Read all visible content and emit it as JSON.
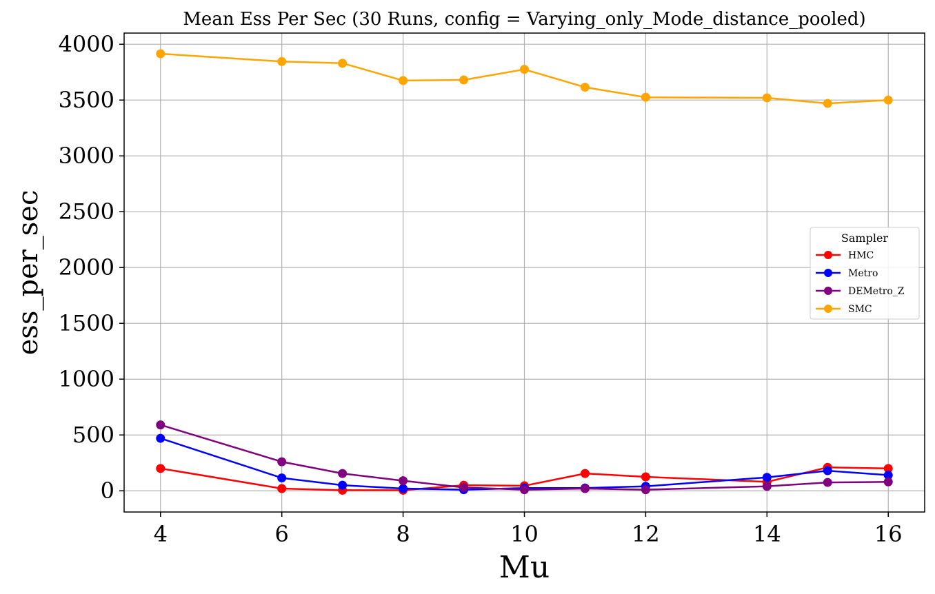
{
  "chart_data": {
    "type": "line",
    "title": "Mean Ess Per Sec (30 Runs, config = Varying_only_Mode_distance_pooled)",
    "xlabel": "Mu",
    "ylabel": "ess_per_sec",
    "xlim": [
      3.4,
      16.6
    ],
    "ylim": [
      -190,
      4100
    ],
    "x_ticks": [
      4,
      6,
      8,
      10,
      12,
      14,
      16
    ],
    "y_ticks": [
      0,
      500,
      1000,
      1500,
      2000,
      2500,
      3000,
      3500,
      4000
    ],
    "grid": true,
    "legend": {
      "title": "Sampler",
      "placement": "center-right"
    },
    "x": [
      4,
      6,
      7,
      8,
      9,
      10,
      11,
      12,
      14,
      15,
      16
    ],
    "series": [
      {
        "name": "HMC",
        "color": "#ff0000",
        "values": [
          200,
          20,
          5,
          5,
          50,
          45,
          155,
          125,
          80,
          210,
          200
        ]
      },
      {
        "name": "Metro",
        "color": "#0000ff",
        "values": [
          470,
          115,
          50,
          20,
          10,
          25,
          25,
          40,
          120,
          180,
          140
        ]
      },
      {
        "name": "DEMetro_Z",
        "color": "#800080",
        "values": [
          590,
          260,
          155,
          90,
          30,
          10,
          20,
          10,
          40,
          75,
          80
        ]
      },
      {
        "name": "SMC",
        "color": "#ffa500",
        "values": [
          3915,
          3845,
          3830,
          3675,
          3680,
          3775,
          3615,
          3525,
          3520,
          3470,
          3500
        ]
      }
    ]
  }
}
